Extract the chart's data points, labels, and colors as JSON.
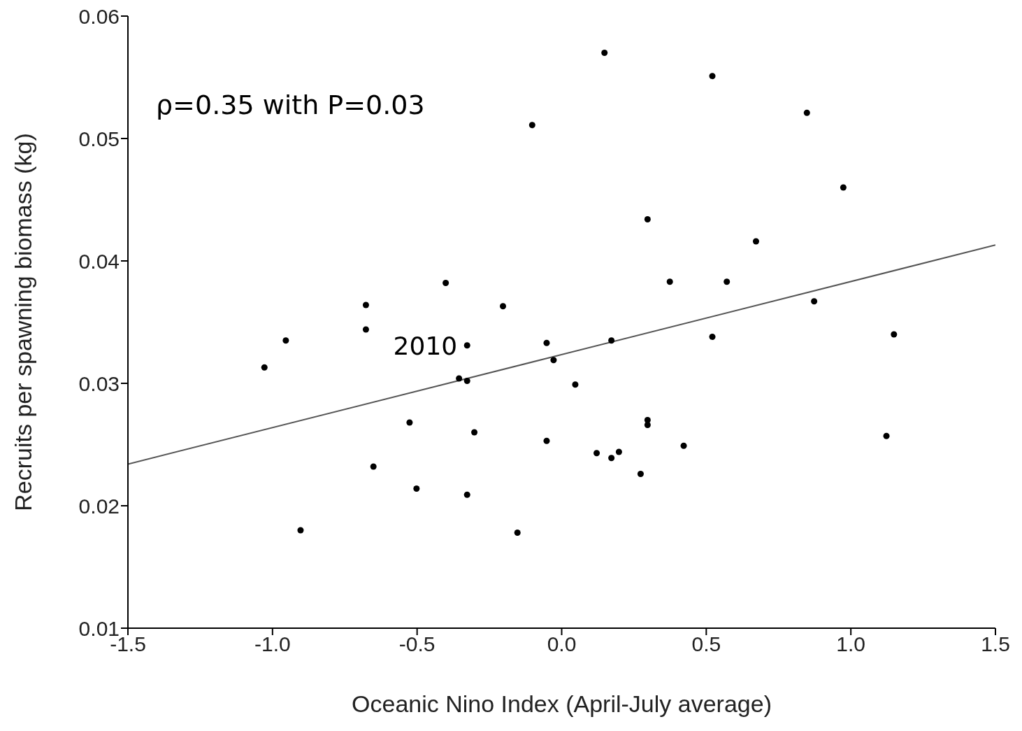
{
  "chart_data": {
    "type": "scatter",
    "xlabel": "Oceanic Nino Index (April-July average)",
    "ylabel": "Recruits per spawning biomass (kg)",
    "xlim": [
      -1.5,
      1.5
    ],
    "xticks": [
      {
        "value": -1.5,
        "label": "-1.5"
      },
      {
        "value": -1,
        "label": "-1.0"
      },
      {
        "value": -0.5,
        "label": "-0.5"
      },
      {
        "value": 0,
        "label": "0.0"
      },
      {
        "value": 0.5,
        "label": "0.5"
      },
      {
        "value": 1,
        "label": "1.0"
      },
      {
        "value": 1.5,
        "label": "1.5"
      }
    ],
    "ylim": [
      0.01,
      0.06
    ],
    "yticks": [
      0.01,
      0.02,
      0.03,
      0.04,
      0.05,
      0.06
    ],
    "grid": false,
    "marker": "circle",
    "series": [
      {
        "type": "scatter",
        "color": "#000000",
        "x": [
          -1.028,
          -0.954,
          -0.903,
          -0.677,
          -0.677,
          -0.651,
          -0.526,
          -0.502,
          -0.401,
          -0.355,
          -0.327,
          -0.327,
          -0.327,
          -0.302,
          -0.203,
          -0.153,
          -0.102,
          -0.052,
          -0.052,
          -0.028,
          0.047,
          0.148,
          0.121,
          0.172,
          0.172,
          0.198,
          0.273,
          0.297,
          0.297,
          0.297,
          0.374,
          0.422,
          0.521,
          0.521,
          0.571,
          0.672,
          0.848,
          0.873,
          0.974,
          1.123,
          1.149
        ],
        "values": [
          0.0313,
          0.0335,
          0.018,
          0.0364,
          0.0344,
          0.0232,
          0.0268,
          0.0214,
          0.0382,
          0.0304,
          0.0331,
          0.0302,
          0.0209,
          0.026,
          0.0363,
          0.0178,
          0.0511,
          0.0333,
          0.0253,
          0.0319,
          0.0299,
          0.057,
          0.0243,
          0.0335,
          0.0239,
          0.0244,
          0.0226,
          0.0434,
          0.027,
          0.0266,
          0.0383,
          0.0249,
          0.0551,
          0.0338,
          0.0383,
          0.0416,
          0.0521,
          0.0367,
          0.046,
          0.0257,
          0.034
        ]
      },
      {
        "type": "line",
        "color": "#555555",
        "marker": "none",
        "line_style": "solid",
        "x": [
          -1.5,
          1.5
        ],
        "values": [
          0.0234,
          0.0413
        ]
      }
    ],
    "annotations": [
      "ρ=0.35 with P=0.03",
      {
        "text": "2010",
        "x": -0.327,
        "y": 0.0331
      }
    ]
  }
}
